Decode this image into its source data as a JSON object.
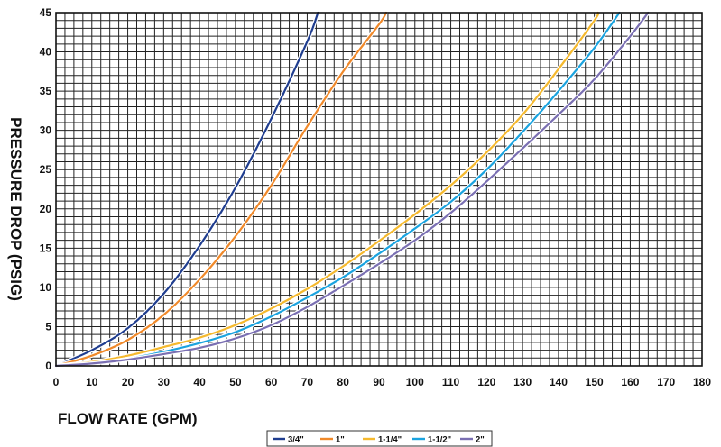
{
  "chart_data": {
    "type": "line",
    "title": "",
    "xlabel": "FLOW RATE (GPM)",
    "ylabel": "PRESSURE DROP (PSIG)",
    "xlim": [
      0,
      180
    ],
    "ylim": [
      0,
      45
    ],
    "x_ticks": [
      0,
      10,
      20,
      30,
      40,
      50,
      60,
      70,
      80,
      90,
      100,
      110,
      120,
      130,
      140,
      150,
      160,
      170,
      180
    ],
    "y_ticks": [
      0,
      5,
      10,
      15,
      20,
      25,
      30,
      35,
      40,
      45
    ],
    "grid": "on",
    "legend_position": "bottom-right",
    "series": [
      {
        "name": "3/4\"",
        "color": "#1f3d8f",
        "x": [
          0,
          10,
          20,
          30,
          40,
          50,
          60,
          70,
          73
        ],
        "y": [
          0,
          2,
          4.8,
          9.2,
          15.3,
          22.7,
          31.5,
          41.3,
          45
        ]
      },
      {
        "name": "1\"",
        "color": "#f0892a",
        "x": [
          0,
          10,
          20,
          30,
          40,
          50,
          60,
          70,
          80,
          90,
          92
        ],
        "y": [
          0,
          1.3,
          3.3,
          6.5,
          11,
          16.5,
          23,
          30.5,
          37.5,
          43.5,
          45
        ]
      },
      {
        "name": "1-1/4\"",
        "color": "#f5b92e",
        "x": [
          0,
          10,
          20,
          30,
          40,
          50,
          60,
          70,
          80,
          90,
          100,
          110,
          120,
          130,
          140,
          150,
          151
        ],
        "y": [
          0,
          0.5,
          1.3,
          2.4,
          3.6,
          5.2,
          7.3,
          9.8,
          12.7,
          15.9,
          19.3,
          23,
          27.2,
          32,
          37.8,
          44,
          45
        ]
      },
      {
        "name": "1-1/2\"",
        "color": "#1aa3df",
        "x": [
          0,
          10,
          20,
          30,
          40,
          50,
          60,
          70,
          80,
          90,
          100,
          110,
          120,
          130,
          140,
          150,
          157
        ],
        "y": [
          0,
          0.3,
          0.9,
          1.8,
          2.9,
          4.3,
          6.3,
          8.7,
          11.3,
          14.3,
          17.5,
          20.9,
          25,
          29.8,
          35,
          40.5,
          45
        ]
      },
      {
        "name": "2\"",
        "color": "#7a6fb2",
        "x": [
          0,
          10,
          20,
          30,
          40,
          50,
          60,
          70,
          80,
          90,
          100,
          110,
          120,
          130,
          140,
          150,
          160,
          165
        ],
        "y": [
          0,
          0.3,
          0.8,
          1.5,
          2.3,
          3.5,
          5.2,
          7.5,
          10.2,
          13,
          16,
          19.5,
          23.5,
          27.7,
          32,
          36.5,
          42,
          45
        ]
      }
    ]
  }
}
